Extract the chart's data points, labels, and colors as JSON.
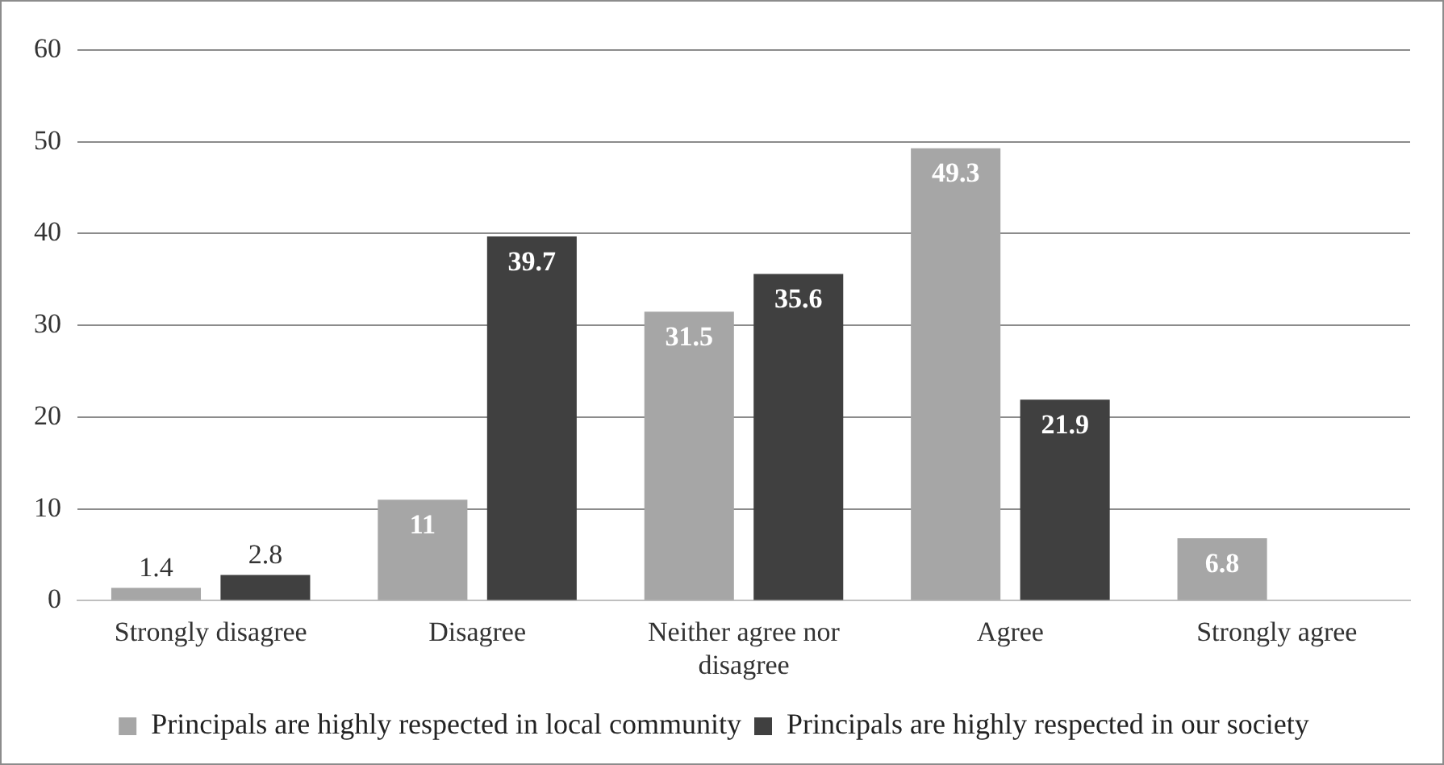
{
  "chart_data": {
    "type": "bar",
    "categories": [
      "Strongly disagree",
      "Disagree",
      "Neither agree nor disagree",
      "Agree",
      "Strongly agree"
    ],
    "series": [
      {
        "name": "Principals are highly respected in local community",
        "color": "#a6a6a6",
        "values": [
          1.4,
          11,
          31.5,
          49.3,
          6.8
        ]
      },
      {
        "name": "Principals are highly respected in our society",
        "color": "#404040",
        "values": [
          2.8,
          39.7,
          35.6,
          21.9,
          null
        ]
      }
    ],
    "ylim": [
      0,
      60
    ],
    "yticks": [
      0,
      10,
      20,
      30,
      40,
      50,
      60
    ],
    "grid": "y",
    "legend": "bottom",
    "data_labels": true
  }
}
